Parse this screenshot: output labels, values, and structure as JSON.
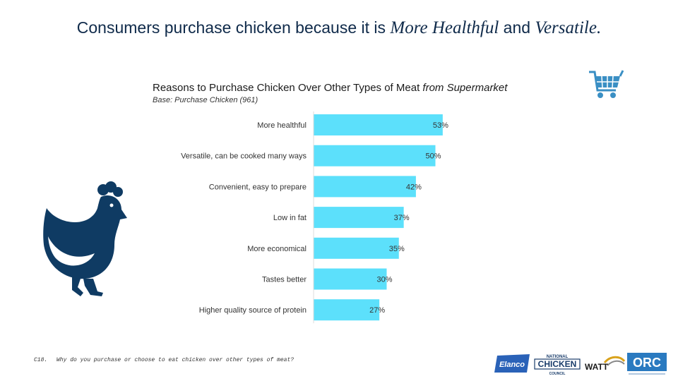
{
  "headline": {
    "prefix": "Consumers purchase chicken because it is ",
    "italic1": "More Healthful",
    "middle": " and ",
    "italic2": "Versatile."
  },
  "subtitle": {
    "main": "Reasons to Purchase Chicken Over Other Types of Meat ",
    "italic": "from Supermarket"
  },
  "base_note": "Base: Purchase Chicken (961)",
  "chart_data": {
    "type": "bar",
    "orientation": "horizontal",
    "categories": [
      "More healthful",
      "Versatile, can be cooked many ways",
      "Convenient, easy to prepare",
      "Low in fat",
      "More economical",
      "Tastes better",
      "Higher quality source of protein"
    ],
    "values": [
      53,
      50,
      42,
      37,
      35,
      30,
      27
    ],
    "value_labels": [
      "53%",
      "50%",
      "42%",
      "37%",
      "35%",
      "30%",
      "27%"
    ],
    "color": "#5ce0fb",
    "xlim": [
      0,
      100
    ],
    "grid": false
  },
  "footer": {
    "code": "C18.",
    "question": "Why do you purchase or choose to eat chicken over other types of meat?"
  },
  "logos": {
    "elanco": "Elanco",
    "ncc_top": "NATIONAL",
    "ncc_main": "CHICKEN",
    "ncc_bottom": "COUNCIL",
    "watt": "WATT",
    "orc": "ORC"
  },
  "colors": {
    "navy": "#0f3b63",
    "bar": "#5ce0fb",
    "cart": "#3a8fc4"
  }
}
